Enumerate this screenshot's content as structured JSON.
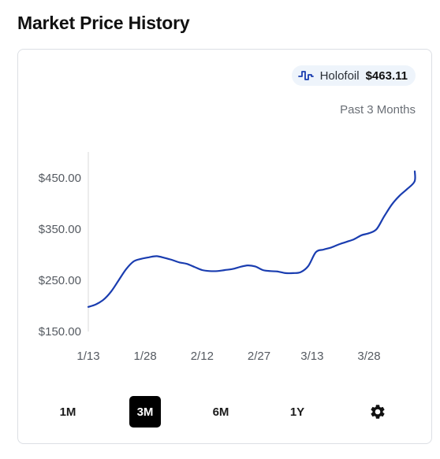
{
  "page": {
    "title": "Market Price History"
  },
  "legend": {
    "name": "Holofoil",
    "value": "$463.11",
    "icon": "line-chart-icon",
    "color": "#1a3db0"
  },
  "range_label": "Past 3 Months",
  "controls": {
    "buttons": [
      {
        "label": "1M",
        "active": false
      },
      {
        "label": "3M",
        "active": true
      },
      {
        "label": "6M",
        "active": false
      },
      {
        "label": "1Y",
        "active": false
      }
    ],
    "settings_icon": "gear-icon"
  },
  "chart_data": {
    "type": "line",
    "title": "",
    "xlabel": "",
    "ylabel": "",
    "x_ticks": [
      "1/13",
      "1/28",
      "2/12",
      "2/27",
      "3/13",
      "3/28"
    ],
    "y_ticks": [
      "$150.00",
      "$250.00",
      "$350.00",
      "$450.00"
    ],
    "ylim": [
      150,
      500
    ],
    "grid": false,
    "series": [
      {
        "name": "Holofoil",
        "color": "#1a3db0",
        "points": [
          [
            "1/13",
            198
          ],
          [
            "1/15",
            203
          ],
          [
            "1/17",
            212
          ],
          [
            "1/19",
            228
          ],
          [
            "1/21",
            250
          ],
          [
            "1/23",
            272
          ],
          [
            "1/25",
            287
          ],
          [
            "1/27",
            292
          ],
          [
            "1/29",
            295
          ],
          [
            "1/31",
            297
          ],
          [
            "2/2",
            294
          ],
          [
            "2/4",
            290
          ],
          [
            "2/6",
            285
          ],
          [
            "2/8",
            282
          ],
          [
            "2/10",
            276
          ],
          [
            "2/12",
            270
          ],
          [
            "2/14",
            268
          ],
          [
            "2/16",
            268
          ],
          [
            "2/18",
            270
          ],
          [
            "2/20",
            272
          ],
          [
            "2/22",
            276
          ],
          [
            "2/24",
            279
          ],
          [
            "2/26",
            277
          ],
          [
            "2/28",
            270
          ],
          [
            "3/2",
            268
          ],
          [
            "3/4",
            267
          ],
          [
            "3/6",
            264
          ],
          [
            "3/8",
            264
          ],
          [
            "3/10",
            266
          ],
          [
            "3/12",
            278
          ],
          [
            "3/14",
            305
          ],
          [
            "3/16",
            310
          ],
          [
            "3/18",
            314
          ],
          [
            "3/20",
            320
          ],
          [
            "3/22",
            325
          ],
          [
            "3/24",
            330
          ],
          [
            "3/26",
            338
          ],
          [
            "3/28",
            342
          ],
          [
            "3/30",
            350
          ],
          [
            "4/1",
            375
          ],
          [
            "4/3",
            398
          ],
          [
            "4/5",
            415
          ],
          [
            "4/7",
            428
          ],
          [
            "4/9",
            443
          ],
          [
            "4/11",
            463
          ]
        ]
      }
    ]
  }
}
